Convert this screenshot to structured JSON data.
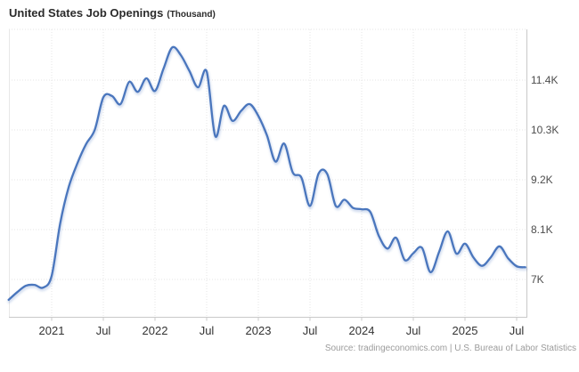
{
  "title": {
    "main": "United States Job Openings",
    "unit": "(Thousand)"
  },
  "source": "Source: tradingeconomics.com | U.S. Bureau of Labor Statistics",
  "colors": {
    "line": "#4a76bd",
    "line_shadow": "rgba(74,118,189,0.22)",
    "grid": "#e4e4e4",
    "plot_border": "#e7e7e7",
    "axis": "#c9c9c9",
    "x_label": "#333333",
    "y_label": "#4d4d4d",
    "title": "#2b2b2b",
    "source": "#9b9b9b",
    "background": "#ffffff"
  },
  "chart_data": {
    "type": "line",
    "title": "United States Job Openings",
    "unit": "Thousand",
    "xlabel": "",
    "ylabel": "Thousand",
    "grid": true,
    "legend": false,
    "ylim": [
      6155,
      12520
    ],
    "xlim": [
      "2020-08",
      "2025-08"
    ],
    "x_tick_labels": [
      "2021",
      "Jul",
      "2022",
      "Jul",
      "2023",
      "Jul",
      "2024",
      "Jul",
      "2025",
      "Jul"
    ],
    "y_ticks": [
      {
        "label": "11.4K",
        "value": 11400
      },
      {
        "label": "10.3K",
        "value": 10300
      },
      {
        "label": "9.2K",
        "value": 9200
      },
      {
        "label": "8.1K",
        "value": 8100
      },
      {
        "label": "7K",
        "value": 7000
      }
    ],
    "series": [
      {
        "name": "United States Job Openings",
        "unit": "Thousand",
        "dates": [
          "2020-08",
          "2020-09",
          "2020-10",
          "2020-11",
          "2020-12",
          "2021-01",
          "2021-02",
          "2021-03",
          "2021-04",
          "2021-05",
          "2021-06",
          "2021-07",
          "2021-08",
          "2021-09",
          "2021-10",
          "2021-11",
          "2021-12",
          "2022-01",
          "2022-02",
          "2022-03",
          "2022-04",
          "2022-05",
          "2022-06",
          "2022-07",
          "2022-08",
          "2022-09",
          "2022-10",
          "2022-11",
          "2022-12",
          "2023-01",
          "2023-02",
          "2023-03",
          "2023-04",
          "2023-05",
          "2023-06",
          "2023-07",
          "2023-08",
          "2023-09",
          "2023-10",
          "2023-11",
          "2023-12",
          "2024-01",
          "2024-02",
          "2024-03",
          "2024-04",
          "2024-05",
          "2024-06",
          "2024-07",
          "2024-08",
          "2024-09",
          "2024-10",
          "2024-11",
          "2024-12",
          "2025-01",
          "2025-02",
          "2025-03",
          "2025-04",
          "2025-05",
          "2025-06",
          "2025-07",
          "2025-08"
        ],
        "values": [
          6550,
          6720,
          6860,
          6880,
          6820,
          7080,
          8250,
          9050,
          9570,
          9990,
          10300,
          11020,
          11050,
          10870,
          11360,
          11140,
          11440,
          11160,
          11660,
          12120,
          11950,
          11600,
          11240,
          11590,
          10160,
          10830,
          10500,
          10720,
          10870,
          10610,
          10180,
          9600,
          10000,
          9360,
          9250,
          8620,
          9340,
          9330,
          8620,
          8760,
          8580,
          8550,
          8490,
          7960,
          7680,
          7920,
          7430,
          7580,
          7700,
          7160,
          7610,
          8060,
          7570,
          7790,
          7480,
          7300,
          7490,
          7730,
          7470,
          7290,
          7270
        ]
      }
    ]
  }
}
